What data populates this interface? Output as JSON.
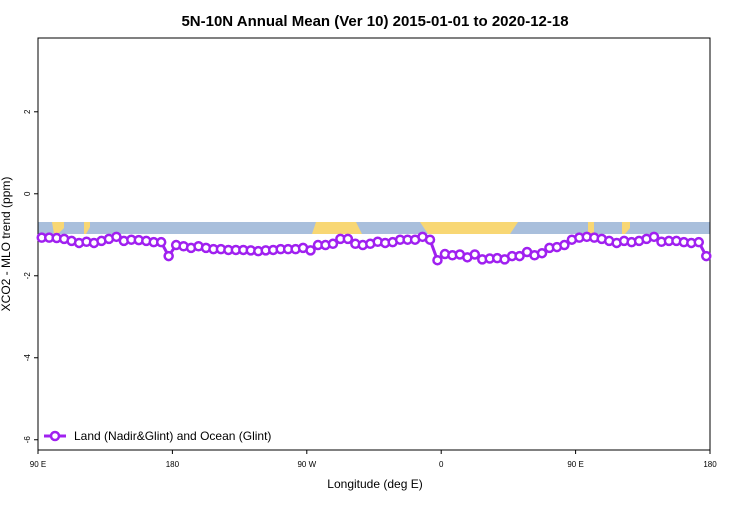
{
  "chart_data": {
    "type": "line",
    "title": "5N-10N Annual Mean (Ver 10)   2015-01-01 to 2020-12-18",
    "xlabel": "Longitude (deg E)",
    "ylabel": "XCO2 - MLO trend (ppm)",
    "x": [
      92.5,
      97.5,
      102.5,
      107.5,
      112.5,
      117.5,
      122.5,
      127.5,
      132.5,
      137.5,
      142.5,
      147.5,
      152.5,
      157.5,
      162.5,
      167.5,
      172.5,
      177.5,
      182.5,
      187.5,
      192.5,
      197.5,
      202.5,
      207.5,
      212.5,
      217.5,
      222.5,
      227.5,
      232.5,
      237.5,
      242.5,
      247.5,
      252.5,
      257.5,
      262.5,
      267.5,
      272.5,
      277.5,
      282.5,
      287.5,
      292.5,
      297.5,
      302.5,
      307.5,
      312.5,
      317.5,
      322.5,
      327.5,
      332.5,
      337.5,
      342.5,
      347.5,
      352.5,
      357.5,
      362.5,
      367.5,
      372.5,
      377.5,
      382.5,
      387.5,
      392.5,
      397.5,
      402.5,
      407.5,
      412.5,
      417.5,
      422.5,
      427.5,
      432.5,
      437.5,
      442.5,
      447.5,
      452.5,
      457.5,
      462.5,
      467.5,
      472.5,
      477.5,
      482.5,
      487.5,
      492.5,
      497.5,
      502.5,
      507.5,
      512.5,
      517.5,
      522.5,
      527.5,
      532.5,
      537.5
    ],
    "series": [
      {
        "name": "Land (Nadir&Glint) and Ocean (Glint)",
        "color": "#a020f0",
        "values": [
          -1.07,
          -1.07,
          -1.08,
          -1.1,
          -1.15,
          -1.2,
          -1.17,
          -1.2,
          -1.15,
          -1.1,
          -1.05,
          -1.15,
          -1.12,
          -1.13,
          -1.15,
          -1.18,
          -1.18,
          -1.52,
          -1.25,
          -1.28,
          -1.32,
          -1.28,
          -1.32,
          -1.35,
          -1.35,
          -1.37,
          -1.37,
          -1.37,
          -1.38,
          -1.4,
          -1.38,
          -1.37,
          -1.35,
          -1.35,
          -1.35,
          -1.32,
          -1.38,
          -1.25,
          -1.25,
          -1.22,
          -1.1,
          -1.1,
          -1.22,
          -1.25,
          -1.22,
          -1.17,
          -1.2,
          -1.18,
          -1.12,
          -1.12,
          -1.12,
          -1.05,
          -1.12,
          -1.62,
          -1.47,
          -1.5,
          -1.48,
          -1.55,
          -1.48,
          -1.6,
          -1.58,
          -1.57,
          -1.6,
          -1.52,
          -1.52,
          -1.42,
          -1.5,
          -1.45,
          -1.32,
          -1.3,
          -1.25,
          -1.12,
          -1.07,
          -1.05,
          -1.07,
          -1.1,
          -1.15,
          -1.2,
          -1.15,
          -1.18,
          -1.15,
          -1.1,
          -1.05,
          -1.17,
          -1.15,
          -1.15,
          -1.18,
          -1.2,
          -1.18,
          -1.52
        ]
      }
    ],
    "xlim": [
      90,
      540
    ],
    "xticks": [
      {
        "value": 90,
        "label": "90 E"
      },
      180,
      {
        "value": 270,
        "label": "90 W"
      },
      {
        "value": 360,
        "label": "0"
      },
      {
        "value": 450,
        "label": "90 E"
      },
      {
        "value": 540,
        "label": "180"
      }
    ],
    "ylim": [
      -6.25,
      3.8
    ],
    "yticks": [
      -6,
      -4,
      -2,
      0,
      2
    ],
    "legend": "bottomleft"
  }
}
